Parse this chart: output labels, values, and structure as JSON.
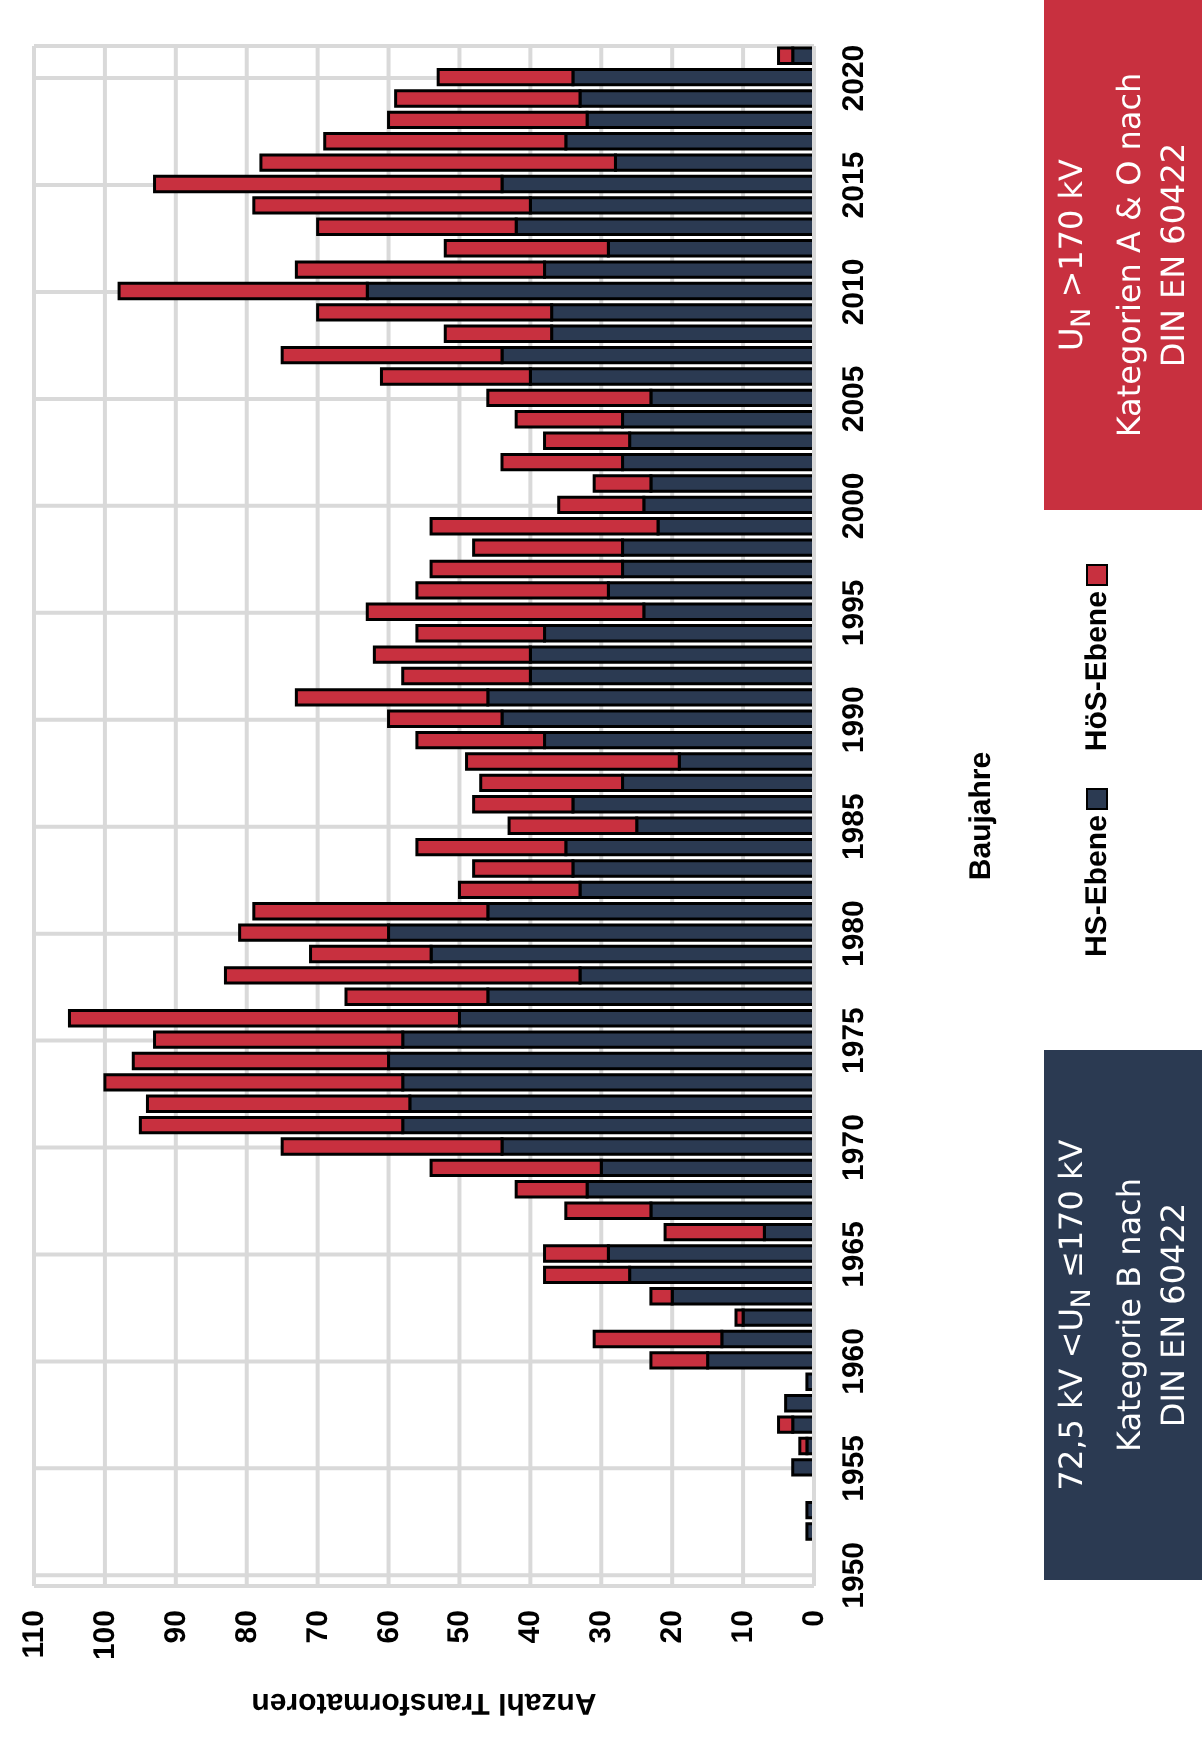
{
  "chart_data": {
    "type": "bar",
    "stacked": true,
    "orientation": "horizontal",
    "xlabel": "Anzahl Transformatoren",
    "ylabel": "Baujahre",
    "categories": [
      null,
      "2020",
      null,
      null,
      null,
      null,
      "2015",
      null,
      null,
      null,
      null,
      "2010",
      null,
      null,
      null,
      null,
      "2005",
      null,
      null,
      null,
      null,
      "2000",
      null,
      null,
      null,
      null,
      "1995",
      null,
      null,
      null,
      null,
      "1990",
      null,
      null,
      null,
      null,
      "1985",
      null,
      null,
      null,
      null,
      "1980",
      null,
      null,
      null,
      null,
      "1975",
      null,
      null,
      null,
      null,
      "1970",
      null,
      null,
      null,
      null,
      "1965",
      null,
      null,
      null,
      null,
      "1960",
      null,
      null,
      null,
      null,
      "1955",
      null,
      null,
      null,
      null,
      "1950"
    ],
    "series": [
      {
        "name": "HS-Ebene",
        "color": "#2b3a52",
        "values": [
          3,
          34,
          33,
          32,
          35,
          28,
          44,
          40,
          42,
          29,
          38,
          63,
          37,
          37,
          44,
          40,
          23,
          27,
          26,
          27,
          23,
          24,
          22,
          27,
          27,
          29,
          24,
          38,
          40,
          40,
          46,
          44,
          38,
          19,
          27,
          34,
          25,
          35,
          34,
          33,
          46,
          60,
          54,
          33,
          46,
          50,
          58,
          60,
          58,
          57,
          58,
          44,
          30,
          32,
          23,
          7,
          29,
          26,
          20,
          10,
          13,
          15,
          1,
          4,
          3,
          1,
          3,
          0,
          1,
          1,
          0,
          0
        ]
      },
      {
        "name": "HöS-Ebene",
        "color": "#c8303f",
        "values": [
          2,
          19,
          26,
          28,
          34,
          50,
          49,
          39,
          28,
          23,
          35,
          35,
          33,
          15,
          31,
          21,
          23,
          15,
          12,
          17,
          8,
          12,
          32,
          21,
          27,
          27,
          39,
          18,
          22,
          18,
          27,
          16,
          18,
          30,
          20,
          14,
          18,
          21,
          14,
          17,
          33,
          21,
          17,
          50,
          20,
          55,
          35,
          36,
          42,
          37,
          37,
          31,
          24,
          10,
          12,
          14,
          9,
          12,
          3,
          1,
          18,
          8,
          0,
          0,
          2,
          1,
          0,
          0,
          0,
          0,
          0,
          0
        ]
      }
    ],
    "xlim": [
      110,
      0
    ],
    "xticks": [
      0,
      10,
      20,
      30,
      40,
      50,
      60,
      70,
      80,
      90,
      100,
      110
    ],
    "grid": true,
    "legend": "right",
    "annotations": [
      "72,5 kV <U$_{N}$ ≤170 kV\nKategorie B nach\nDIN EN 60422",
      "U$_{N}$ >170 kV\nKategorien A & O nach\nDIN EN 60422"
    ]
  }
}
